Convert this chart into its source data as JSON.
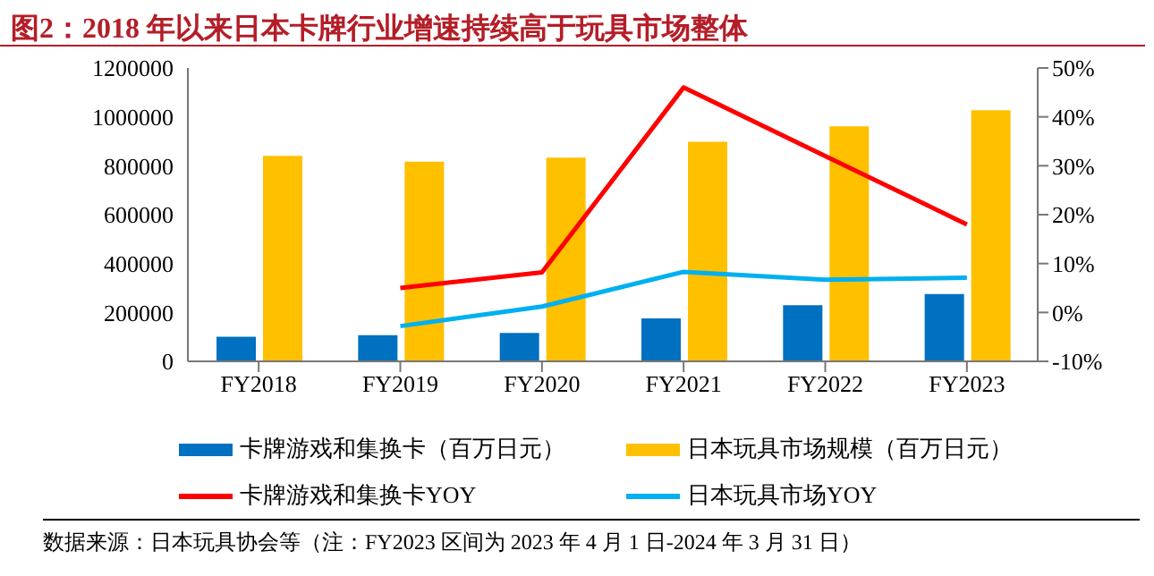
{
  "chart_data": {
    "type": "bar",
    "title": "图2：2018 年以来日本卡牌行业增速持续高于玩具市场整体",
    "categories": [
      "FY2018",
      "FY2019",
      "FY2020",
      "FY2021",
      "FY2022",
      "FY2023"
    ],
    "series": [
      {
        "name": "卡牌游戏和集换卡（百万日元）",
        "color": "#0070c0",
        "values": [
          101000,
          107000,
          116000,
          176000,
          230000,
          275000
        ]
      },
      {
        "name": "日本玩具市场规模（百万日元）",
        "color": "#ffc000",
        "values": [
          841000,
          817000,
          833000,
          898000,
          961000,
          1027000
        ]
      },
      {
        "name": "卡牌游戏和集换卡YOY",
        "type": "line",
        "axis": "y2",
        "color": "#ff0000",
        "values": [
          null,
          5,
          8.2,
          46,
          32,
          18
        ]
      },
      {
        "name": "日本玩具市场YOY",
        "type": "line",
        "axis": "y2",
        "color": "#00b0f0",
        "values": [
          null,
          -2.8,
          1.2,
          8.3,
          6.7,
          7.1
        ]
      }
    ],
    "ylim": [
      0,
      1200000
    ],
    "yticks": [
      0,
      200000,
      400000,
      600000,
      800000,
      1000000,
      1200000
    ],
    "y2lim": [
      -10,
      50
    ],
    "y2ticks": [
      {
        "value": -10,
        "label": "-10%"
      },
      {
        "value": 0,
        "label": "0%"
      },
      {
        "value": 10,
        "label": "10%"
      },
      {
        "value": 20,
        "label": "20%"
      },
      {
        "value": 30,
        "label": "30%"
      },
      {
        "value": 40,
        "label": "40%"
      },
      {
        "value": 50,
        "label": "50%"
      }
    ],
    "grid": false,
    "legend": "bottom",
    "marker": "none",
    "annotations": [
      "数据来源：日本玩具协会等（注：FY2023 区间为 2023 年 4 月 1 日-2024 年 3 月 31 日）"
    ]
  }
}
